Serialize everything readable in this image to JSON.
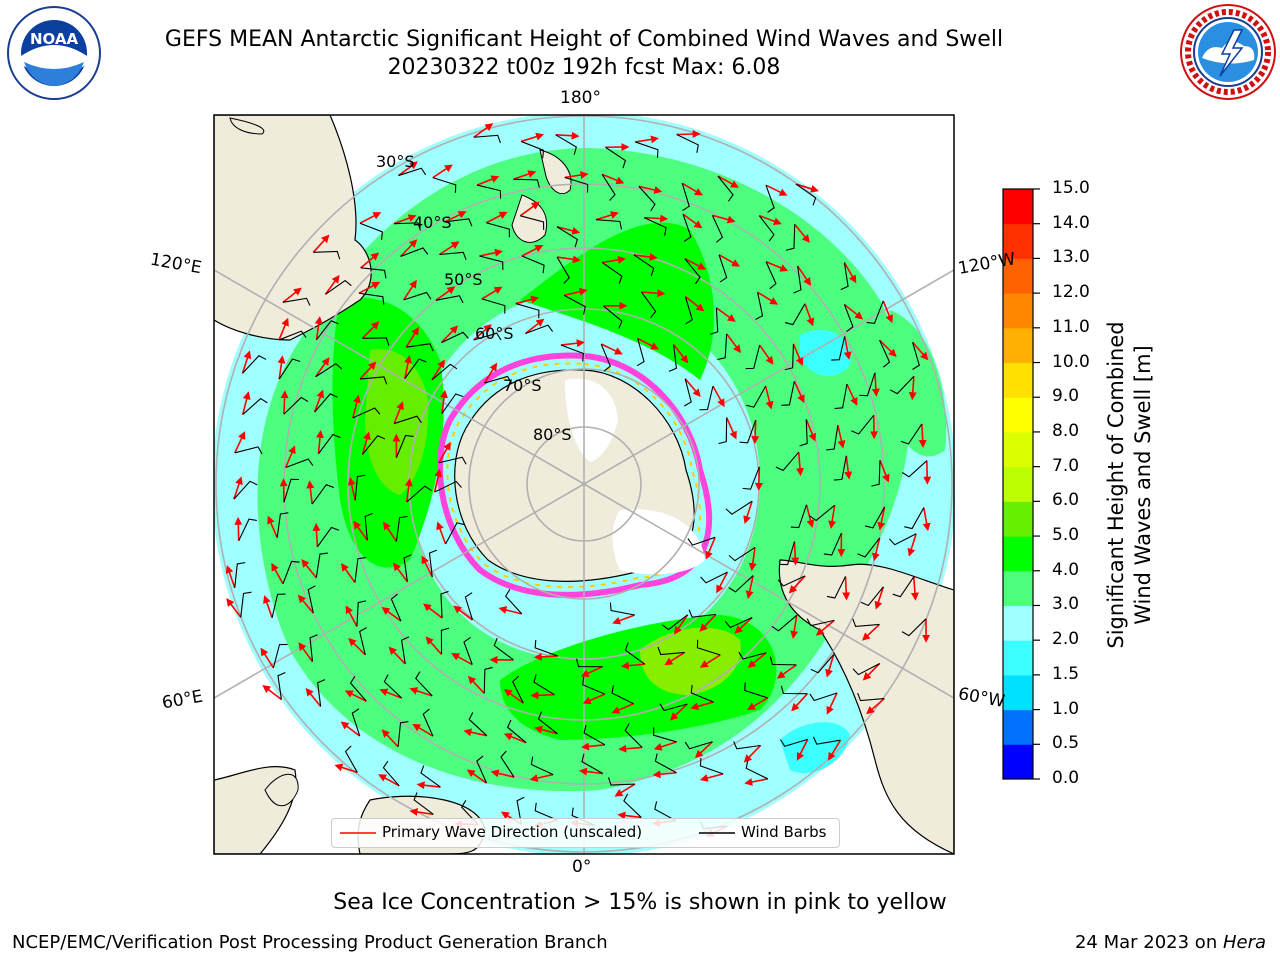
{
  "title": {
    "line1": "GEFS MEAN Antarctic Significant Height of Combined Wind Waves and Swell",
    "line2": "20230322 t00z 192h fcst   Max: 6.08"
  },
  "logos": {
    "left": {
      "name": "noaa-logo",
      "text": "NOAA",
      "ring_text": "NATIONAL OCEANIC AND ATMOSPHERIC ADMINISTRATION · U.S. DEPARTMENT OF COMMERCE"
    },
    "right": {
      "name": "nws-logo",
      "ring_text": "NATIONAL WEATHER SERVICE"
    }
  },
  "map": {
    "projection": "south polar stereographic",
    "longitude_labels": {
      "top": "180°",
      "upper_left": "120°E",
      "upper_right": "120°W",
      "lower_left": "60°E",
      "lower_right": "60°W",
      "bottom": "0°"
    },
    "latitude_labels": [
      "30°S",
      "40°S",
      "50°S",
      "60°S",
      "70°S",
      "80°S"
    ],
    "colors": {
      "land": "#efecdc",
      "ice_sheet": "#ffffff",
      "grid": "#b0b0b0",
      "wave_arrow": "#ff0000",
      "wind_barb": "#000000",
      "sea_ice": "#ff44dd"
    }
  },
  "legend": {
    "wave_label": "Primary Wave Direction (unscaled)",
    "wind_label": "Wind Barbs"
  },
  "colorbar": {
    "title_line1": "Significant Height of Combined",
    "title_line2": "Wind Waves and Swell [m]",
    "levels": [
      "0.0",
      "0.5",
      "1.0",
      "1.5",
      "2.0",
      "3.0",
      "4.0",
      "5.0",
      "6.0",
      "7.0",
      "8.0",
      "9.0",
      "10.0",
      "11.0",
      "12.0",
      "13.0",
      "14.0",
      "15.0"
    ],
    "colors": [
      "#0000ff",
      "#0072ff",
      "#00e0ff",
      "#3cffff",
      "#a0ffff",
      "#4dff7f",
      "#00ff00",
      "#66ee00",
      "#bbff00",
      "#dcff00",
      "#ffff00",
      "#ffe000",
      "#ffb000",
      "#ff8800",
      "#ff6000",
      "#ff3000",
      "#ff0000"
    ]
  },
  "footer": {
    "note": "Sea Ice Concentration > 15% is shown in pink to yellow",
    "credit": "NCEP/EMC/Verification Post Processing Product Generation Branch",
    "date": "24 Mar 2023 on ",
    "machine": "Hera"
  }
}
